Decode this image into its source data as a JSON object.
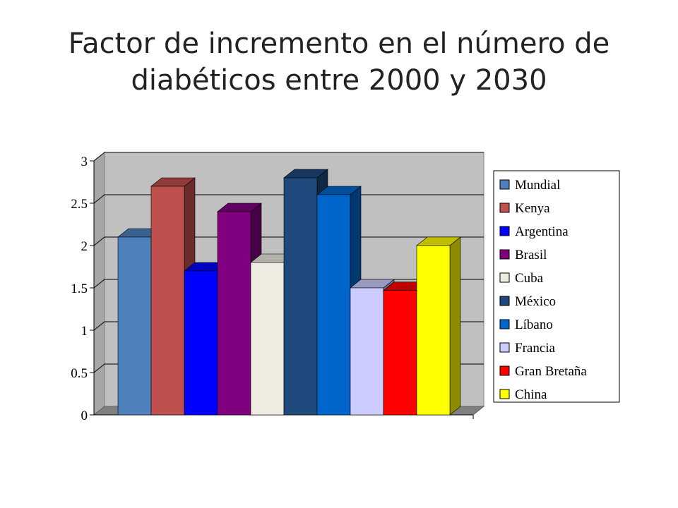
{
  "title_lines": [
    "Factor de incremento en el número de",
    "diabéticos entre 2000 y 2030"
  ],
  "chart_data": {
    "type": "bar",
    "title": "Factor de incremento en el número de diabéticos entre 2000 y 2030",
    "categories": [
      "Mundial",
      "Kenya",
      "Argentina",
      "Brasil",
      "Cuba",
      "México",
      "Líbano",
      "Francia",
      "Gran Bretaña",
      "China"
    ],
    "values": [
      2.1,
      2.7,
      1.7,
      2.4,
      1.8,
      2.8,
      2.6,
      1.5,
      1.47,
      2.0
    ],
    "colors": [
      "#4F81BD",
      "#C0504D",
      "#0000FF",
      "#800080",
      "#EEECE1",
      "#1F497D",
      "#0066CC",
      "#CCCCFF",
      "#FF0000",
      "#FFFF00"
    ],
    "y_ticks": [
      "0",
      "0.5",
      "1",
      "1.5",
      "2",
      "2.5",
      "3"
    ],
    "ylim": [
      0,
      3
    ],
    "grid": true,
    "legend_position": "right",
    "xlabel": "",
    "ylabel": ""
  }
}
